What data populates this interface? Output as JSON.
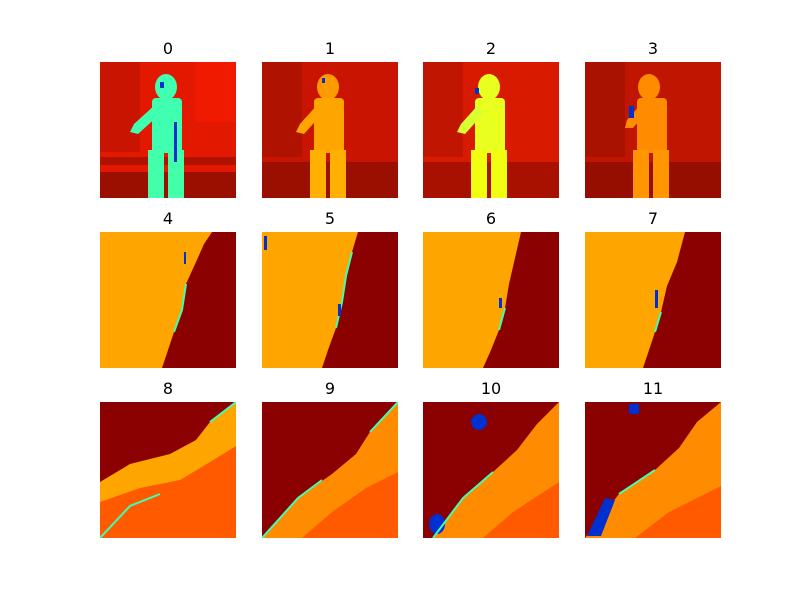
{
  "figure": {
    "panels": [
      {
        "title": "0",
        "kind": "person-cyan"
      },
      {
        "title": "1",
        "kind": "person-orange"
      },
      {
        "title": "2",
        "kind": "person-yellow"
      },
      {
        "title": "3",
        "kind": "person-orange2"
      },
      {
        "title": "4",
        "kind": "depth-split"
      },
      {
        "title": "5",
        "kind": "depth-split"
      },
      {
        "title": "6",
        "kind": "depth-split"
      },
      {
        "title": "7",
        "kind": "depth-split"
      },
      {
        "title": "8",
        "kind": "diagonal"
      },
      {
        "title": "9",
        "kind": "diagonal"
      },
      {
        "title": "10",
        "kind": "diagonal"
      },
      {
        "title": "11",
        "kind": "diagonal"
      }
    ],
    "colors": {
      "deep_red": "#8b0000",
      "red": "#d81a00",
      "orange": "#ff8c00",
      "amber": "#ffa500",
      "orange_red": "#ff5a00",
      "yellow": "#e8ff20",
      "cyan": "#40ffb0",
      "blue": "#0030d0"
    }
  }
}
